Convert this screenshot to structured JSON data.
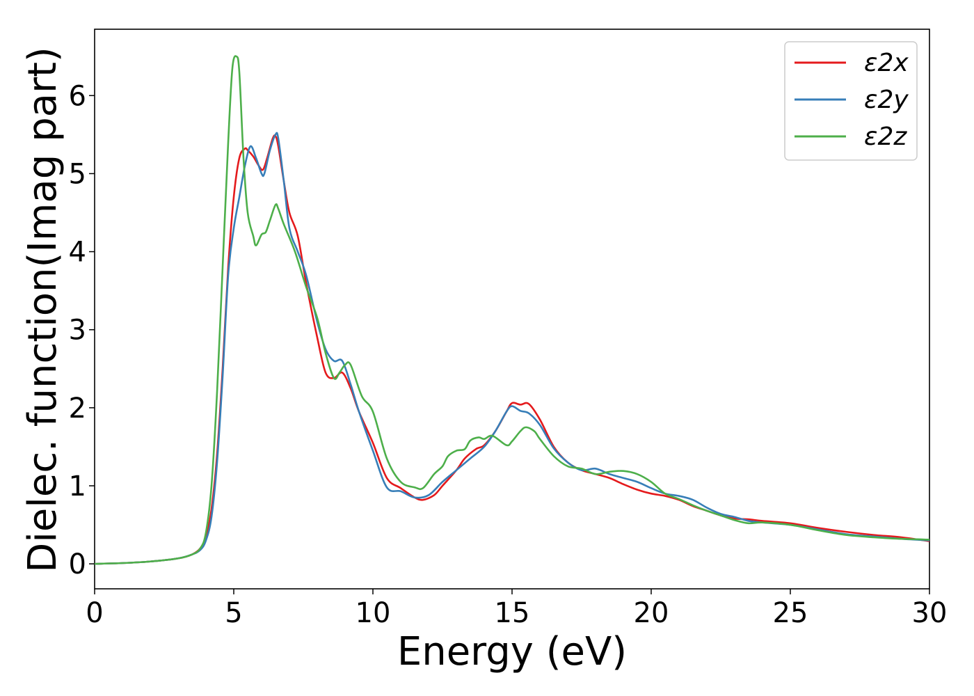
{
  "chart_data": {
    "type": "line",
    "title": "",
    "xlabel": "Energy (eV)",
    "ylabel": "Dielec. function(Imag part)",
    "xlim": [
      0,
      30
    ],
    "ylim": [
      -0.32,
      6.85
    ],
    "xticks": [
      0,
      5,
      10,
      15,
      20,
      25,
      30
    ],
    "yticks": [
      0,
      1,
      2,
      3,
      4,
      5,
      6
    ],
    "grid": false,
    "legend_position": "top-right",
    "series": [
      {
        "name": "ε2x",
        "color": "#e41a1c",
        "x": [
          0,
          1,
          2,
          3,
          3.5,
          3.8,
          4,
          4.2,
          4.4,
          4.6,
          4.8,
          5,
          5.2,
          5.4,
          5.5,
          5.7,
          5.9,
          6.05,
          6.2,
          6.4,
          6.5,
          6.6,
          6.8,
          7,
          7.3,
          7.6,
          8,
          8.3,
          8.6,
          8.9,
          9.2,
          9.5,
          10,
          10.5,
          11,
          11.5,
          11.8,
          12.2,
          12.5,
          13,
          13.3,
          13.7,
          14,
          14.4,
          14.8,
          15,
          15.3,
          15.6,
          16,
          16.5,
          17,
          17.5,
          18,
          18.5,
          19,
          19.5,
          20,
          20.5,
          21,
          21.5,
          22,
          22.5,
          23,
          23.5,
          24,
          25,
          26,
          27,
          28,
          29,
          30
        ],
        "values": [
          0,
          0.01,
          0.03,
          0.07,
          0.12,
          0.2,
          0.35,
          0.7,
          1.4,
          2.5,
          3.8,
          4.7,
          5.2,
          5.32,
          5.3,
          5.22,
          5.1,
          5.05,
          5.2,
          5.45,
          5.48,
          5.35,
          4.9,
          4.5,
          4.2,
          3.6,
          2.9,
          2.45,
          2.38,
          2.45,
          2.25,
          1.95,
          1.55,
          1.1,
          0.97,
          0.85,
          0.82,
          0.88,
          1.0,
          1.2,
          1.35,
          1.47,
          1.52,
          1.7,
          1.95,
          2.06,
          2.04,
          2.05,
          1.85,
          1.5,
          1.3,
          1.2,
          1.15,
          1.1,
          1.02,
          0.95,
          0.9,
          0.87,
          0.82,
          0.74,
          0.68,
          0.62,
          0.58,
          0.57,
          0.55,
          0.52,
          0.46,
          0.41,
          0.37,
          0.34,
          0.29
        ]
      },
      {
        "name": "ε2y",
        "color": "#377eb8",
        "x": [
          0,
          1,
          2,
          3,
          3.5,
          3.8,
          4,
          4.2,
          4.4,
          4.6,
          4.8,
          5,
          5.2,
          5.4,
          5.6,
          5.8,
          6,
          6.1,
          6.3,
          6.5,
          6.6,
          6.8,
          7,
          7.3,
          7.6,
          8,
          8.3,
          8.6,
          8.9,
          9.2,
          9.5,
          10,
          10.5,
          11,
          11.5,
          12,
          12.5,
          13,
          13.5,
          14,
          14.4,
          14.8,
          15,
          15.3,
          15.6,
          16,
          16.5,
          17,
          17.5,
          18,
          18.5,
          19,
          19.5,
          20,
          20.5,
          21,
          21.5,
          22,
          22.5,
          23,
          23.5,
          24,
          25,
          26,
          27,
          28,
          29,
          30
        ],
        "values": [
          0,
          0.01,
          0.03,
          0.07,
          0.12,
          0.18,
          0.3,
          0.6,
          1.3,
          2.4,
          3.7,
          4.3,
          4.7,
          5.1,
          5.35,
          5.2,
          5.0,
          5.0,
          5.3,
          5.5,
          5.45,
          4.9,
          4.3,
          4.0,
          3.7,
          3.1,
          2.75,
          2.6,
          2.6,
          2.3,
          1.95,
          1.45,
          0.98,
          0.93,
          0.85,
          0.88,
          1.05,
          1.2,
          1.35,
          1.5,
          1.7,
          1.95,
          2.02,
          1.96,
          1.93,
          1.78,
          1.48,
          1.3,
          1.2,
          1.22,
          1.15,
          1.1,
          1.05,
          0.97,
          0.9,
          0.87,
          0.82,
          0.72,
          0.64,
          0.6,
          0.55,
          0.53,
          0.5,
          0.44,
          0.38,
          0.35,
          0.32,
          0.3
        ]
      },
      {
        "name": "ε2z",
        "color": "#4daf4a",
        "x": [
          0,
          1,
          2,
          3,
          3.5,
          3.8,
          4,
          4.2,
          4.4,
          4.6,
          4.8,
          4.95,
          5.1,
          5.2,
          5.35,
          5.5,
          5.7,
          5.8,
          6,
          6.15,
          6.3,
          6.5,
          6.6,
          6.8,
          7.2,
          7.6,
          8,
          8.3,
          8.6,
          8.8,
          9.0,
          9.2,
          9.6,
          10,
          10.5,
          11,
          11.5,
          11.8,
          12.2,
          12.5,
          12.7,
          13,
          13.3,
          13.5,
          13.8,
          14,
          14.3,
          14.8,
          15,
          15.3,
          15.5,
          15.8,
          16,
          16.5,
          17,
          17.5,
          18,
          18.5,
          19,
          19.5,
          20,
          20.5,
          21,
          21.5,
          22,
          22.5,
          23,
          23.5,
          24,
          25,
          26,
          27,
          28,
          29,
          30
        ],
        "values": [
          0,
          0.01,
          0.03,
          0.07,
          0.12,
          0.2,
          0.4,
          1.0,
          2.2,
          3.8,
          5.4,
          6.35,
          6.5,
          6.3,
          5.2,
          4.5,
          4.2,
          4.08,
          4.22,
          4.25,
          4.4,
          4.6,
          4.55,
          4.35,
          4.0,
          3.55,
          3.15,
          2.7,
          2.38,
          2.45,
          2.55,
          2.55,
          2.15,
          1.95,
          1.35,
          1.05,
          0.98,
          0.97,
          1.15,
          1.25,
          1.38,
          1.45,
          1.47,
          1.58,
          1.62,
          1.6,
          1.64,
          1.52,
          1.57,
          1.7,
          1.75,
          1.7,
          1.6,
          1.38,
          1.25,
          1.22,
          1.15,
          1.18,
          1.19,
          1.15,
          1.05,
          0.9,
          0.83,
          0.75,
          0.68,
          0.62,
          0.56,
          0.52,
          0.53,
          0.5,
          0.43,
          0.37,
          0.34,
          0.32,
          0.31
        ]
      }
    ]
  }
}
